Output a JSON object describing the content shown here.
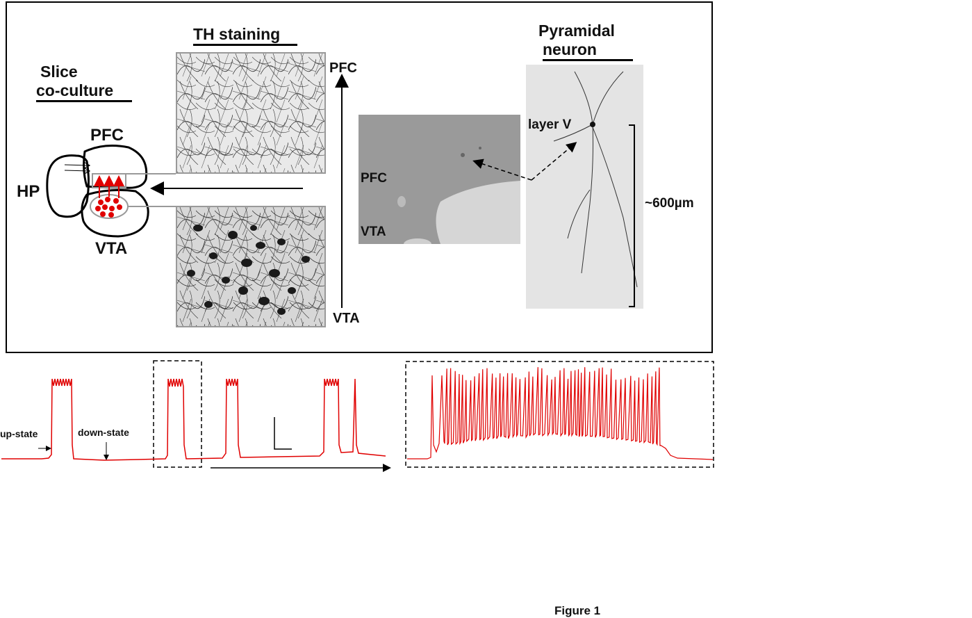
{
  "panel_a": {
    "slice_label_line1": "Slice",
    "slice_label_line2": "co-culture",
    "region_pfc": "PFC",
    "region_hp": "HP",
    "region_vta": "VTA",
    "th_staining_title": "TH staining",
    "axis_top_label": "PFC",
    "axis_bottom_label": "VTA",
    "overview_pfc_label": "PFC",
    "overview_vta_label": "VTA",
    "pyramidal_title_line1": "Pyramidal",
    "pyramidal_title_line2": "neuron",
    "layer_label": "layer V",
    "scale_label": "~600µm"
  },
  "panel_b": {
    "up_state_label": "up-state",
    "down_state_label": "down-state"
  },
  "figure_caption": "Figure 1",
  "colors": {
    "trace": "#e00000",
    "neuron_dots": "#e00000",
    "frame": "#000000"
  }
}
